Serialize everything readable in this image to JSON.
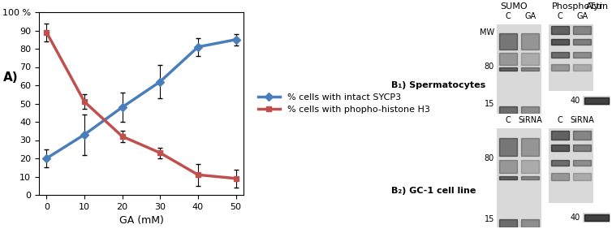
{
  "chart_data": {
    "type": "line",
    "label": "A)",
    "x_label": "GA (mM)",
    "x": [
      0,
      10,
      20,
      30,
      40,
      50
    ],
    "series": [
      {
        "name": "% cells with intact SYCP3",
        "color": "#4a7ebb",
        "marker": "diamond",
        "values": [
          20,
          33,
          48,
          62,
          81,
          85
        ],
        "errors": [
          5,
          11,
          8,
          9,
          5,
          3
        ]
      },
      {
        "name": "% cells with phopho-histone H3",
        "color": "#c0504d",
        "marker": "square",
        "values": [
          89,
          51,
          32,
          23,
          11,
          9
        ],
        "errors": [
          5,
          4,
          3,
          3,
          6,
          5
        ]
      }
    ],
    "xlim": [
      -2,
      52
    ],
    "xticks": [
      0,
      10,
      20,
      30,
      40,
      50
    ],
    "ylim": [
      0,
      100
    ],
    "yticks": [
      0,
      10,
      20,
      30,
      40,
      50,
      60,
      70,
      80,
      90,
      {
        "value": 100,
        "label": "100 %"
      }
    ],
    "grid": false,
    "legend": "center left"
  },
  "blots": {
    "header": [
      "SUMO",
      "PhosphoTyr",
      "Actin"
    ],
    "mw_label": "MW",
    "rows": [
      {
        "label": "B₁) Spermatocytes",
        "lanes": [
          [
            "C",
            "GA"
          ],
          [
            "C",
            "GA"
          ]
        ],
        "markers": [
          80,
          15
        ],
        "actin_marker": 40
      },
      {
        "label": "B₂) GC-1 cell line",
        "lanes": [
          [
            "C",
            "SiRNA"
          ],
          [
            "C",
            "SiRNA"
          ]
        ],
        "markers": [
          80,
          15
        ],
        "actin_marker": 40
      }
    ]
  }
}
